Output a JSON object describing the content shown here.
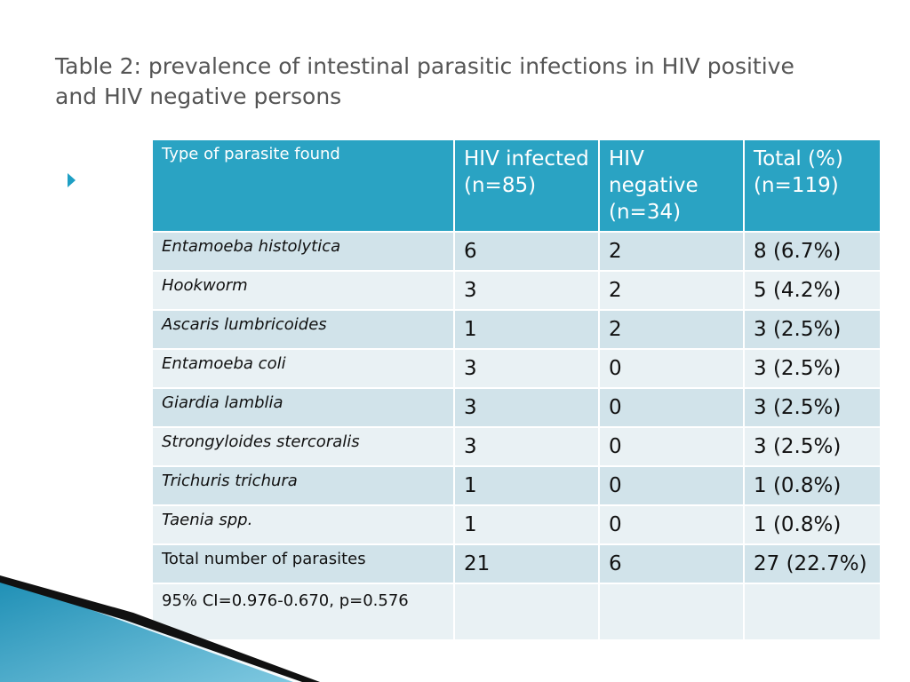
{
  "slide": {
    "title": "Table 2: prevalence of intestinal parasitic infections in HIV positive and HIV negative persons"
  },
  "table": {
    "headers": [
      "Type of parasite found",
      "HIV infected (n=85)",
      "HIV negative (n=34)",
      "Total (%) (n=119)"
    ],
    "rows": [
      [
        "Entamoeba histolytica",
        "6",
        "2",
        "8 (6.7%)"
      ],
      [
        "Hookworm",
        "3",
        "2",
        "5 (4.2%)"
      ],
      [
        "Ascaris lumbricoides",
        "1",
        "2",
        "3 (2.5%)"
      ],
      [
        "Entamoeba coli",
        "3",
        "0",
        "3 (2.5%)"
      ],
      [
        "Giardia lamblia",
        "3",
        "0",
        "3 (2.5%)"
      ],
      [
        "Strongyloides stercoralis",
        "3",
        "0",
        "3 (2.5%)"
      ],
      [
        "Trichuris trichura",
        "1",
        "0",
        "1 (0.8%)"
      ],
      [
        "Taenia spp.",
        "1",
        "0",
        "1 (0.8%)"
      ]
    ],
    "total_row": [
      "Total number of parasites",
      "21",
      "6",
      "27 (22.7%)"
    ],
    "note_row": [
      "95% CI=0.976-0.670, p=0.576",
      "",
      "",
      ""
    ]
  },
  "colors": {
    "header_bg": "#2aa3c3",
    "row_dark": "#d1e3ea",
    "row_light": "#e9f1f4",
    "accent": "#1e9fc4",
    "title_text": "#555555"
  },
  "icons": {
    "bullet": "triangle-bullet-icon"
  }
}
